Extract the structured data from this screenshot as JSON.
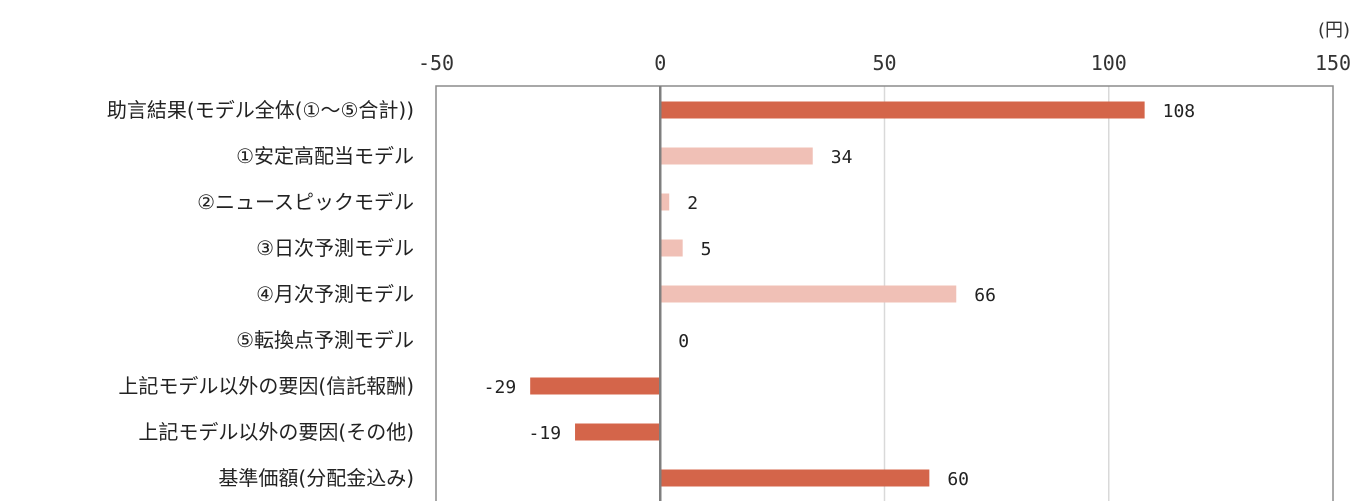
{
  "chart_data": {
    "type": "bar",
    "orientation": "horizontal",
    "unit_label": "(円)",
    "xlim": [
      -50,
      150
    ],
    "x_ticks": [
      -50,
      0,
      50,
      100,
      150
    ],
    "x_tick_labels": [
      "-50",
      "0",
      "50",
      "100",
      "150"
    ],
    "axis_position": "top",
    "grid": true,
    "categories": [
      "助言結果(モデル全体(①〜⑤合計))",
      "①安定高配当モデル",
      "②ニュースピックモデル",
      "③日次予測モデル",
      "④月次予測モデル",
      "⑤転換点予測モデル",
      "上記モデル以外の要因(信託報酬)",
      "上記モデル以外の要因(その他)",
      "基準価額(分配金込み)"
    ],
    "values": [
      108,
      34,
      2,
      5,
      66,
      0,
      -29,
      -19,
      60
    ],
    "value_labels": [
      "108",
      "34",
      "2",
      "5",
      "66",
      "0",
      "-29",
      "-19",
      "60"
    ],
    "bar_colors": [
      "#d4654a",
      "#f0c0b6",
      "#f0c0b6",
      "#f0c0b6",
      "#f0c0b6",
      "#f0c0b6",
      "#d4654a",
      "#d4654a",
      "#d4654a"
    ]
  }
}
